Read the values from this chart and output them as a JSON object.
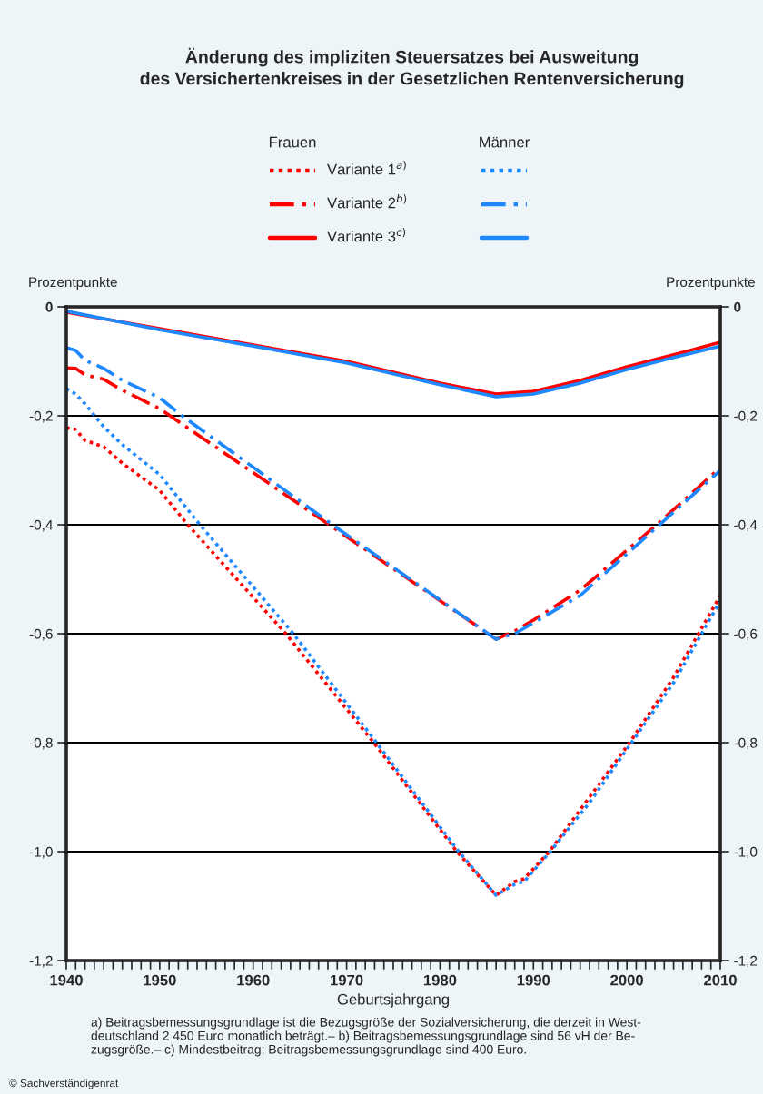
{
  "chart_data": {
    "type": "line",
    "title": "Änderung des impliziten Steuersatzes bei Ausweitung\ndes Versichertenkreises in der Gesetzlichen Rentenversicherung",
    "xlabel": "Geburtsjahrgang",
    "ylabel": "Prozentpunkte",
    "y2label": "Prozentpunkte",
    "annotations": [
      "Frauen",
      "Männer",
      "a) Beitragsbemessungsgrundlage ist die Bezugsgröße der Sozialversicherung, die derzeit in West-\ndeutschland 2 450 Euro monatlich beträgt.– b) Beitragsbemessungsgrundlage sind 56 vH der Be-\nzugsgröße.– c) Mindestbeitrag; Beitragsbemessungsgrundlage sind 400 Euro.",
      "© Sachverständigenrat"
    ],
    "series": [
      {
        "name": "Variante 1$^{a)}$",
        "color": "#ff0000",
        "line_style": "dotted",
        "x": [
          1940,
          1941,
          1942,
          1944,
          1946,
          1950,
          1953,
          1963.5,
          1972.9,
          1981.8,
          1986,
          1988,
          1989,
          1991.7,
          1996,
          2000.3,
          2005,
          2010
        ],
        "values": [
          -0.222,
          -0.225,
          -0.245,
          -0.257,
          -0.287,
          -0.337,
          -0.4,
          -0.6,
          -0.8,
          -1.0,
          -1.08,
          -1.055,
          -1.05,
          -1.0,
          -0.9,
          -0.8,
          -0.68,
          -0.53
        ]
      },
      {
        "name": "Variante 2$^{b)}$",
        "color": "#ff0000",
        "line_style": "dashdot",
        "x": [
          1940,
          1941,
          1942,
          1944,
          1946,
          1950,
          1969,
          1986,
          1988,
          1990,
          1995,
          2003.2,
          2010
        ],
        "values": [
          -0.112,
          -0.113,
          -0.125,
          -0.133,
          -0.153,
          -0.187,
          -0.41,
          -0.61,
          -0.595,
          -0.575,
          -0.52,
          -0.4,
          -0.295
        ]
      },
      {
        "name": "Variante 3$^{c)}$",
        "color": "#ff0000",
        "line_style": "solid",
        "x": [
          1940,
          1950,
          1960,
          1970,
          1980,
          1986,
          1990,
          1995,
          2000,
          2005,
          2010
        ],
        "values": [
          -0.01,
          -0.04,
          -0.07,
          -0.1,
          -0.14,
          -0.16,
          -0.155,
          -0.135,
          -0.11,
          -0.088,
          -0.065
        ]
      },
      {
        "color": "#1e88ff",
        "line_style": "dotted",
        "x": [
          1940,
          1941,
          1942,
          1944,
          1946,
          1950,
          1954.3,
          1964.3,
          1973.2,
          1982,
          1986,
          1988,
          1989,
          1991.8,
          1996,
          2000.5,
          2005,
          2010
        ],
        "values": [
          -0.15,
          -0.16,
          -0.178,
          -0.22,
          -0.253,
          -0.308,
          -0.4,
          -0.6,
          -0.8,
          -1.0,
          -1.08,
          -1.06,
          -1.055,
          -1.0,
          -0.91,
          -0.8,
          -0.69,
          -0.54
        ]
      },
      {
        "color": "#1e88ff",
        "line_style": "dashdot",
        "x": [
          1940,
          1941,
          1942,
          1944,
          1946,
          1950,
          1952.4,
          1969.3,
          1986,
          1988,
          1990,
          1995,
          2003.5,
          2010
        ],
        "values": [
          -0.075,
          -0.08,
          -0.098,
          -0.113,
          -0.135,
          -0.167,
          -0.2,
          -0.41,
          -0.61,
          -0.6,
          -0.58,
          -0.53,
          -0.4,
          -0.3
        ]
      },
      {
        "color": "#1e88ff",
        "line_style": "solid",
        "x": [
          1940,
          1950,
          1960,
          1970,
          1980,
          1986,
          1990,
          1995,
          2000,
          2005,
          2010
        ],
        "values": [
          -0.008,
          -0.042,
          -0.072,
          -0.103,
          -0.143,
          -0.165,
          -0.16,
          -0.14,
          -0.115,
          -0.093,
          -0.072
        ]
      }
    ],
    "xlim": [
      1940,
      2010
    ],
    "xticks": [
      1940,
      {
        "value": 1941,
        "label": null
      },
      {
        "value": 1942,
        "label": null
      },
      {
        "value": 1943,
        "label": null
      },
      {
        "value": 1944,
        "label": null
      },
      {
        "value": 1945,
        "label": null
      },
      {
        "value": 1946,
        "label": null
      },
      {
        "value": 1947,
        "label": null
      },
      {
        "value": 1948,
        "label": null
      },
      {
        "value": 1949,
        "label": null
      },
      1950,
      {
        "value": 1951,
        "label": null
      },
      {
        "value": 1952,
        "label": null
      },
      {
        "value": 1953,
        "label": null
      },
      {
        "value": 1954,
        "label": null
      },
      {
        "value": 1955,
        "label": null
      },
      {
        "value": 1956,
        "label": null
      },
      {
        "value": 1957,
        "label": null
      },
      {
        "value": 1958,
        "label": null
      },
      {
        "value": 1959,
        "label": null
      },
      1960,
      {
        "value": 1961,
        "label": null
      },
      {
        "value": 1962,
        "label": null
      },
      {
        "value": 1963,
        "label": null
      },
      {
        "value": 1964,
        "label": null
      },
      {
        "value": 1965,
        "label": null
      },
      {
        "value": 1966,
        "label": null
      },
      {
        "value": 1967,
        "label": null
      },
      {
        "value": 1968,
        "label": null
      },
      {
        "value": 1969,
        "label": null
      },
      1970,
      {
        "value": 1971,
        "label": null
      },
      {
        "value": 1972,
        "label": null
      },
      {
        "value": 1973,
        "label": null
      },
      {
        "value": 1974,
        "label": null
      },
      {
        "value": 1975,
        "label": null
      },
      {
        "value": 1976,
        "label": null
      },
      {
        "value": 1977,
        "label": null
      },
      {
        "value": 1978,
        "label": null
      },
      {
        "value": 1979,
        "label": null
      },
      1980,
      {
        "value": 1981,
        "label": null
      },
      {
        "value": 1982,
        "label": null
      },
      {
        "value": 1983,
        "label": null
      },
      {
        "value": 1984,
        "label": null
      },
      {
        "value": 1985,
        "label": null
      },
      {
        "value": 1986,
        "label": null
      },
      {
        "value": 1987,
        "label": null
      },
      {
        "value": 1988,
        "label": null
      },
      {
        "value": 1989,
        "label": null
      },
      1990,
      {
        "value": 1991,
        "label": null
      },
      {
        "value": 1992,
        "label": null
      },
      {
        "value": 1993,
        "label": null
      },
      {
        "value": 1994,
        "label": null
      },
      {
        "value": 1995,
        "label": null
      },
      {
        "value": 1996,
        "label": null
      },
      {
        "value": 1997,
        "label": null
      },
      {
        "value": 1998,
        "label": null
      },
      {
        "value": 1999,
        "label": null
      },
      2000,
      {
        "value": 2001,
        "label": null
      },
      {
        "value": 2002,
        "label": null
      },
      {
        "value": 2003,
        "label": null
      },
      {
        "value": 2004,
        "label": null
      },
      {
        "value": 2005,
        "label": null
      },
      {
        "value": 2006,
        "label": null
      },
      {
        "value": 2007,
        "label": null
      },
      {
        "value": 2008,
        "label": null
      },
      {
        "value": 2009,
        "label": null
      },
      2010
    ],
    "ylim": [
      -1.2,
      0
    ],
    "yticks": [
      {
        "value": -1.2,
        "label": "-1,2"
      },
      {
        "value": -1.0,
        "label": "-1,0"
      },
      {
        "value": -0.8,
        "label": "-0,8"
      },
      {
        "value": -0.6,
        "label": "-0,6"
      },
      {
        "value": -0.4,
        "label": "-0,4"
      },
      {
        "value": -0.2,
        "label": "-0,2"
      },
      0
    ],
    "y2lim": [
      -1.2,
      0
    ],
    "y2ticks": [
      {
        "value": -1.2,
        "label": "-1,2"
      },
      {
        "value": -1.0,
        "label": "-1,0"
      },
      {
        "value": -0.8,
        "label": "-0,8"
      },
      {
        "value": -0.6,
        "label": "-0,6"
      },
      {
        "value": -0.4,
        "label": "-0,4"
      },
      {
        "value": -0.2,
        "label": "-0,2"
      },
      0
    ],
    "grid": "y",
    "legend": "top",
    "marker": "none"
  }
}
